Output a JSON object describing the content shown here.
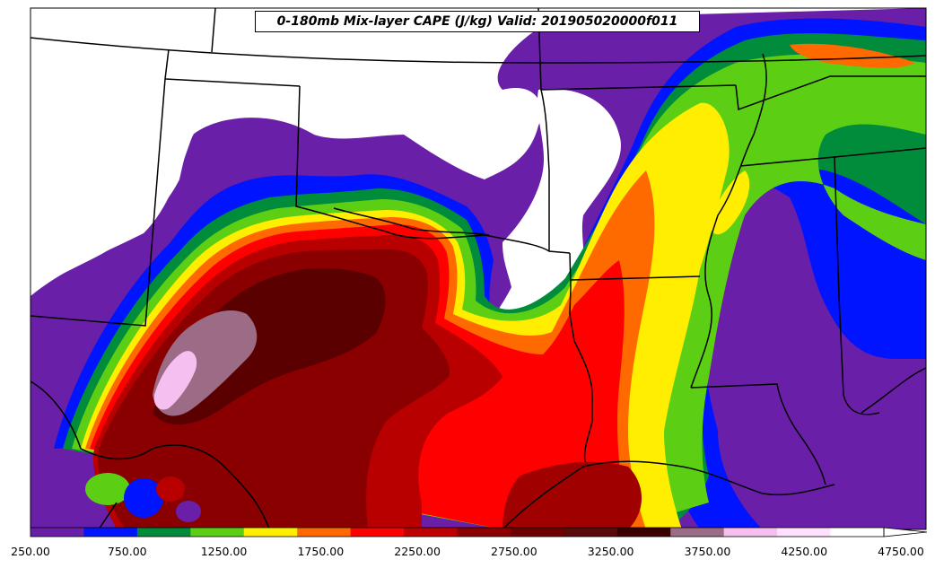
{
  "title": "0-180mb Mix-layer CAPE (J/kg) Valid: 201905020000f011",
  "colorbar": {
    "tick_labels": [
      "250.00",
      "750.00",
      "1250.00",
      "1750.00",
      "2250.00",
      "2750.00",
      "3250.00",
      "3750.00",
      "4250.00",
      "4750.00"
    ],
    "colors": [
      "#6a1fa8",
      "#0014ff",
      "#008c3a",
      "#5ccf14",
      "#ffee00",
      "#ff6a00",
      "#ff0000",
      "#c00000",
      "#8b0000",
      "#700000",
      "#5a0a0a",
      "#3a0000",
      "#9c6b86",
      "#f5c0f0",
      "#ffe0ff",
      "#ffffff"
    ],
    "extend": "max"
  },
  "legend_colors": {
    "purple": "#6a1fa8",
    "blue": "#0014ff",
    "darkgreen": "#008c3a",
    "lightgreen": "#5ccf14",
    "yellow": "#ffee00",
    "orange": "#ff6a00",
    "red": "#ff0000",
    "darkred": "#b80000",
    "maroon": "#8a0000",
    "deepmaroon": "#560000",
    "mauve": "#9c6b86",
    "pink": "#f5c0f0"
  }
}
